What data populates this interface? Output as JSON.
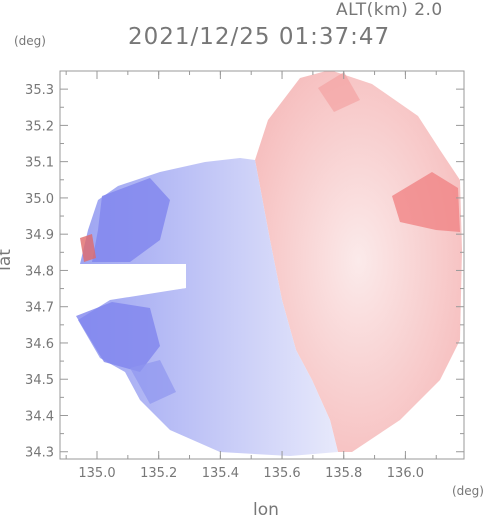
{
  "header": {
    "altitude": "ALT(km) 2.0",
    "timestamp": "2021/12/25 01:37:47"
  },
  "chart_data": {
    "type": "heatmap",
    "title": "2021/12/25 01:37:47",
    "subtitle": "ALT(km) 2.0",
    "xlabel": "lon",
    "ylabel": "lat",
    "x_unit": "(deg)",
    "y_unit": "(deg)",
    "xlim": [
      134.88,
      136.19
    ],
    "ylim": [
      34.28,
      35.35
    ],
    "x_ticks": [
      "135.0",
      "135.2",
      "135.4",
      "135.6",
      "135.8",
      "136.0"
    ],
    "y_ticks": [
      "34.3",
      "34.4",
      "34.5",
      "34.6",
      "34.7",
      "34.8",
      "34.9",
      "35.0",
      "35.1",
      "35.2",
      "35.3"
    ],
    "grid": false,
    "colors": {
      "approaching": "#7a7ef0",
      "receding": "#f07a7a",
      "near_zero": "#ffffff"
    }
  }
}
